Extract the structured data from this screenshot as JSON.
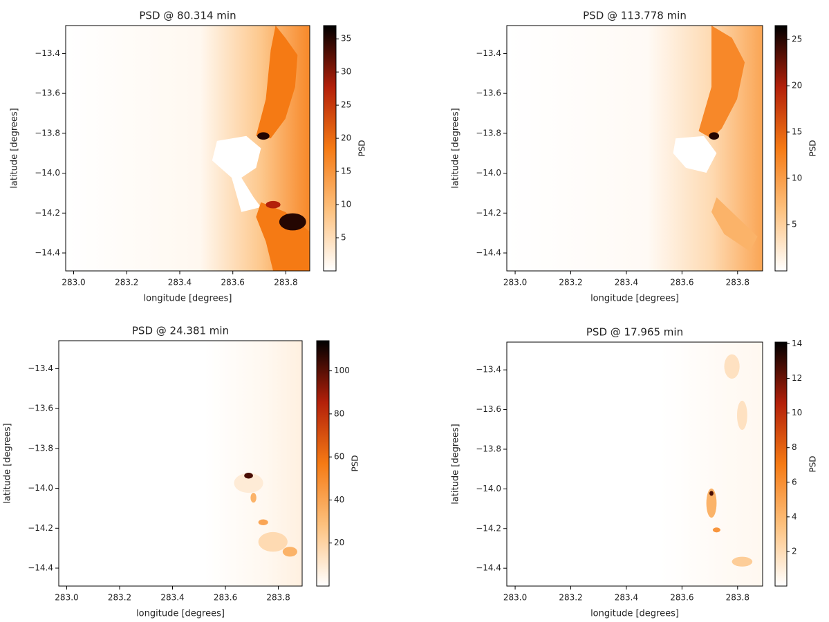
{
  "chart_data": [
    {
      "type": "heatmap",
      "title": "PSD @ 80.314 min",
      "xlabel": "longitude [degrees]",
      "ylabel": "latitude [degrees]",
      "xlim": [
        282.97,
        283.89
      ],
      "ylim": [
        -14.49,
        -13.26
      ],
      "xticks": [
        {
          "value": 283,
          "label": "283.0"
        },
        283.2,
        283.4,
        283.6,
        283.8
      ],
      "yticks": [
        {
          "value": -13.4,
          "label": "−13.4"
        },
        {
          "value": -13.6,
          "label": "−13.6"
        },
        {
          "value": -13.8,
          "label": "−13.8"
        },
        {
          "value": -14.0,
          "label": "−14.0"
        },
        {
          "value": -14.2,
          "label": "−14.2"
        },
        {
          "value": -14.4,
          "label": "−14.4"
        }
      ],
      "colorbar": {
        "label": "PSD",
        "lim": [
          0,
          37
        ],
        "ticks": [
          5,
          10,
          15,
          20,
          25,
          30,
          35
        ]
      },
      "colormap": [
        "#ffffff",
        "#fdc17e",
        "#f57a14",
        "#b3200a",
        "#000000"
      ]
    },
    {
      "type": "heatmap",
      "title": "PSD @ 113.778 min",
      "xlabel": "longitude [degrees]",
      "ylabel": "latitude [degrees]",
      "xlim": [
        282.97,
        283.89
      ],
      "ylim": [
        -14.49,
        -13.26
      ],
      "xticks": [
        {
          "value": 283,
          "label": "283.0"
        },
        283.2,
        283.4,
        283.6,
        283.8
      ],
      "yticks": [
        {
          "value": -13.4,
          "label": "−13.4"
        },
        {
          "value": -13.6,
          "label": "−13.6"
        },
        {
          "value": -13.8,
          "label": "−13.8"
        },
        {
          "value": -14.0,
          "label": "−14.0"
        },
        {
          "value": -14.2,
          "label": "−14.2"
        },
        {
          "value": -14.4,
          "label": "−14.4"
        }
      ],
      "colorbar": {
        "label": "PSD",
        "lim": [
          0,
          26.5
        ],
        "ticks": [
          5,
          10,
          15,
          20,
          25
        ]
      },
      "colormap": [
        "#ffffff",
        "#fdc17e",
        "#f57a14",
        "#b3200a",
        "#000000"
      ]
    },
    {
      "type": "heatmap",
      "title": "PSD @ 24.381 min",
      "xlabel": "longitude [degrees]",
      "ylabel": "latitude [degrees]",
      "xlim": [
        282.97,
        283.89
      ],
      "ylim": [
        -14.49,
        -13.26
      ],
      "xticks": [
        {
          "value": 283,
          "label": "283.0"
        },
        283.2,
        283.4,
        283.6,
        283.8
      ],
      "yticks": [
        {
          "value": -13.4,
          "label": "−13.4"
        },
        {
          "value": -13.6,
          "label": "−13.6"
        },
        {
          "value": -13.8,
          "label": "−13.8"
        },
        {
          "value": -14.0,
          "label": "−14.0"
        },
        {
          "value": -14.2,
          "label": "−14.2"
        },
        {
          "value": -14.4,
          "label": "−14.4"
        }
      ],
      "colorbar": {
        "label": "PSD",
        "lim": [
          0,
          114
        ],
        "ticks": [
          20,
          40,
          60,
          80,
          100
        ]
      },
      "colormap": [
        "#ffffff",
        "#fdc17e",
        "#f57a14",
        "#b3200a",
        "#000000"
      ]
    },
    {
      "type": "heatmap",
      "title": "PSD @ 17.965 min",
      "xlabel": "longitude [degrees]",
      "ylabel": "latitude [degrees]",
      "xlim": [
        282.97,
        283.89
      ],
      "ylim": [
        -14.49,
        -13.26
      ],
      "xticks": [
        {
          "value": 283,
          "label": "283.0"
        },
        283.2,
        283.4,
        283.6,
        283.8
      ],
      "yticks": [
        {
          "value": -13.4,
          "label": "−13.4"
        },
        {
          "value": -13.6,
          "label": "−13.6"
        },
        {
          "value": -13.8,
          "label": "−13.8"
        },
        {
          "value": -14.0,
          "label": "−14.0"
        },
        {
          "value": -14.2,
          "label": "−14.2"
        },
        {
          "value": -14.4,
          "label": "−14.4"
        }
      ],
      "colorbar": {
        "label": "PSD",
        "lim": [
          0,
          14.1
        ],
        "ticks": [
          2,
          4,
          6,
          8,
          10,
          12,
          14
        ]
      },
      "colormap": [
        "#ffffff",
        "#fdc17e",
        "#f57a14",
        "#b3200a",
        "#000000"
      ]
    }
  ]
}
